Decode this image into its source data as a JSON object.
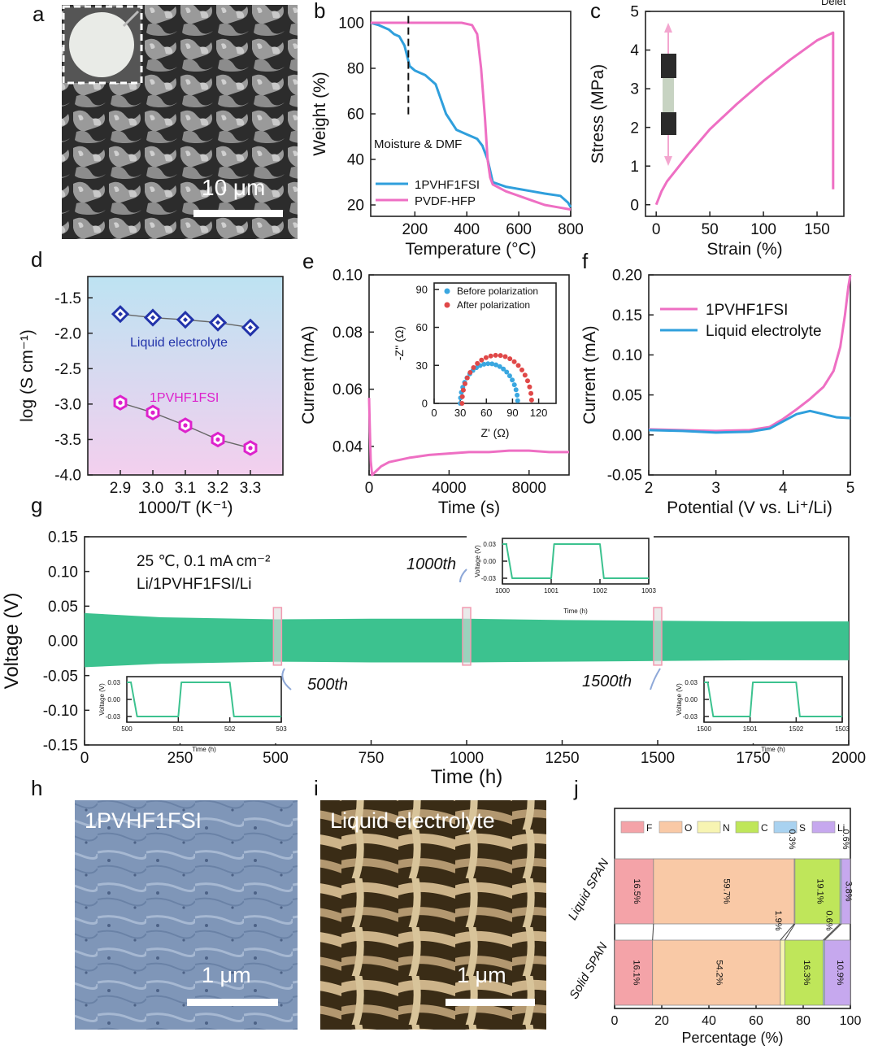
{
  "corner_text": "Delet",
  "panels": {
    "a": {
      "letter": "a",
      "scale_label": "10 μm"
    },
    "b": {
      "letter": "b",
      "annotation": "Moisture & DMF"
    },
    "c": {
      "letter": "c"
    },
    "d": {
      "letter": "d"
    },
    "e": {
      "letter": "e"
    },
    "f": {
      "letter": "f"
    },
    "g": {
      "letter": "g",
      "conditions_line1": "25 ℃, 0.1 mA cm⁻²",
      "conditions_line2": "Li/1PVHF1FSI/Li",
      "callouts": [
        "500th",
        "1000th",
        "1500th"
      ]
    },
    "h": {
      "letter": "h",
      "label": "1PVHF1FSI",
      "scale_label": "1 μm"
    },
    "i": {
      "letter": "i",
      "label": "Liquid electrolyte",
      "scale_label": "1 μm"
    },
    "j": {
      "letter": "j"
    }
  },
  "colors": {
    "pink": "#ee6fc3",
    "blue": "#2f9fdc",
    "green": "#3cc28f",
    "navy": "#2233aa",
    "magenta": "#dd22cc"
  },
  "chart_data": [
    {
      "panel": "b",
      "type": "line",
      "xlabel": "Temperature (°C)",
      "ylabel": "Weight (%)",
      "xlim": [
        30,
        800
      ],
      "ylim": [
        15,
        105
      ],
      "xticks": [
        200,
        400,
        600,
        800
      ],
      "yticks": [
        20,
        40,
        60,
        80,
        100
      ],
      "legend": "bottom-left",
      "series": [
        {
          "name": "1PVHF1FSI",
          "color": "#2f9fdc",
          "x": [
            30,
            60,
            100,
            120,
            140,
            160,
            180,
            200,
            240,
            280,
            320,
            360,
            400,
            440,
            460,
            480,
            500,
            550,
            600,
            650,
            700,
            760,
            790,
            800
          ],
          "y": [
            100,
            99,
            97,
            95,
            94,
            90,
            81,
            79,
            77,
            73,
            60,
            53,
            51,
            49,
            46,
            40,
            30,
            28,
            27,
            26,
            25,
            24,
            21,
            19
          ]
        },
        {
          "name": "PVDF-HFP",
          "color": "#ee6fc3",
          "x": [
            30,
            100,
            200,
            300,
            380,
            420,
            440,
            455,
            470,
            480,
            490,
            500,
            550,
            600,
            650,
            700,
            750,
            800
          ],
          "y": [
            100,
            100,
            100,
            100,
            100,
            99,
            95,
            80,
            58,
            40,
            32,
            29,
            26,
            24,
            22,
            20,
            19,
            18
          ]
        }
      ]
    },
    {
      "panel": "c",
      "type": "line",
      "xlabel": "Strain (%)",
      "ylabel": "Stress (MPa)",
      "xlim": [
        -10,
        175
      ],
      "ylim": [
        -0.3,
        5
      ],
      "xticks": [
        0,
        50,
        100,
        150
      ],
      "yticks": [
        0,
        1,
        2,
        3,
        4,
        5
      ],
      "series": [
        {
          "color": "#ee6fc3",
          "x": [
            0,
            5,
            10,
            20,
            30,
            50,
            75,
            100,
            125,
            150,
            165,
            165,
            165
          ],
          "y": [
            0,
            0.35,
            0.6,
            0.95,
            1.3,
            1.95,
            2.6,
            3.2,
            3.75,
            4.25,
            4.45,
            2.0,
            0.4
          ]
        }
      ]
    },
    {
      "panel": "d",
      "type": "scatter",
      "xlabel": "1000/T (K⁻¹)",
      "ylabel": "log (S cm⁻¹)",
      "xlim": [
        2.8,
        3.4
      ],
      "ylim": [
        -4.0,
        -1.2
      ],
      "xticks": [
        2.9,
        3.0,
        3.1,
        3.2,
        3.3
      ],
      "yticks": [
        -1.5,
        -2.0,
        -2.5,
        -3.0,
        -3.5,
        -4.0
      ],
      "series": [
        {
          "name": "Liquid electrolyte",
          "color": "#2233aa",
          "marker": "diamond",
          "x": [
            2.9,
            3.0,
            3.1,
            3.2,
            3.3
          ],
          "y": [
            -1.73,
            -1.78,
            -1.81,
            -1.85,
            -1.92
          ]
        },
        {
          "name": "1PVHF1FSI",
          "color": "#dd22cc",
          "marker": "hexagon",
          "x": [
            2.9,
            3.0,
            3.1,
            3.2,
            3.3
          ],
          "y": [
            -2.98,
            -3.12,
            -3.3,
            -3.5,
            -3.62
          ]
        }
      ]
    },
    {
      "panel": "e",
      "type": "line",
      "xlabel": "Time (s)",
      "ylabel": "Current (mA)",
      "xlim": [
        0,
        10000
      ],
      "ylim": [
        0.03,
        0.1
      ],
      "xticks": [
        0,
        4000,
        8000
      ],
      "yticks": [
        0.04,
        0.06,
        0.08,
        0.1
      ],
      "series": [
        {
          "color": "#ee6fc3",
          "x": [
            0,
            30,
            80,
            150,
            300,
            600,
            1000,
            2000,
            3000,
            4000,
            5000,
            6000,
            7000,
            8000,
            9000,
            10000
          ],
          "y": [
            0.057,
            0.048,
            0.035,
            0.03,
            0.031,
            0.033,
            0.0345,
            0.036,
            0.037,
            0.0375,
            0.038,
            0.038,
            0.0385,
            0.0385,
            0.038,
            0.038
          ]
        }
      ],
      "inset": {
        "type": "scatter",
        "xlabel": "Z' (Ω)",
        "ylabel": "-Z'' (Ω)",
        "xlim": [
          0,
          140
        ],
        "ylim": [
          0,
          95
        ],
        "xticks": [
          0,
          30,
          60,
          90,
          120
        ],
        "yticks": [
          0,
          30,
          60,
          90
        ],
        "legend": "top",
        "series": [
          {
            "name": "Before polarization",
            "color": "#3aa7e0",
            "center": 63,
            "radius": 33
          },
          {
            "name": "After polarization",
            "color": "#e04848",
            "center": 72,
            "radius": 40
          }
        ]
      }
    },
    {
      "panel": "f",
      "type": "line",
      "xlabel": "Potential (V vs. Li⁺/Li)",
      "ylabel": "Current (mA)",
      "xlim": [
        2,
        5
      ],
      "ylim": [
        -0.05,
        0.2
      ],
      "xticks": [
        2,
        3,
        4,
        5
      ],
      "yticks": [
        -0.05,
        0.0,
        0.05,
        0.1,
        0.15,
        0.2
      ],
      "legend": "top-left",
      "series": [
        {
          "name": "1PVHF1FSI",
          "color": "#ee6fc3",
          "x": [
            2.0,
            2.5,
            3.0,
            3.5,
            3.8,
            4.0,
            4.2,
            4.4,
            4.6,
            4.75,
            4.85,
            4.92,
            4.97,
            5.0
          ],
          "y": [
            0.007,
            0.006,
            0.005,
            0.006,
            0.01,
            0.02,
            0.032,
            0.045,
            0.06,
            0.08,
            0.11,
            0.15,
            0.185,
            0.2
          ]
        },
        {
          "name": "Liquid electrolyte",
          "color": "#2f9fdc",
          "x": [
            2.0,
            2.5,
            3.0,
            3.5,
            3.8,
            4.0,
            4.2,
            4.4,
            4.6,
            4.8,
            5.0
          ],
          "y": [
            0.006,
            0.005,
            0.003,
            0.004,
            0.008,
            0.017,
            0.026,
            0.03,
            0.026,
            0.022,
            0.021
          ]
        }
      ]
    },
    {
      "panel": "g",
      "type": "area",
      "xlabel": "Time (h)",
      "ylabel": "Voltage (V)",
      "xlim": [
        0,
        2000
      ],
      "ylim": [
        -0.15,
        0.15
      ],
      "xticks": [
        0,
        250,
        500,
        750,
        1000,
        1250,
        1500,
        1750,
        2000
      ],
      "yticks": [
        -0.15,
        -0.1,
        -0.05,
        0.0,
        0.05,
        0.1,
        0.15
      ],
      "series": [
        {
          "color": "#3cc28f",
          "x": [
            0,
            200,
            500,
            750,
            1000,
            1250,
            1500,
            1750,
            2000
          ],
          "upper": [
            0.04,
            0.034,
            0.031,
            0.032,
            0.032,
            0.03,
            0.029,
            0.028,
            0.028
          ],
          "lower": [
            -0.038,
            -0.033,
            -0.03,
            -0.031,
            -0.031,
            -0.03,
            -0.029,
            -0.028,
            -0.028
          ]
        }
      ],
      "insets": [
        {
          "cycle": "500th",
          "xlabel": "Time (h)",
          "ylabel": "Voltage (V)",
          "xticks": [
            500,
            501,
            502,
            503
          ],
          "yticks": [
            0.03,
            0.0,
            -0.03
          ]
        },
        {
          "cycle": "1000th",
          "xlabel": "Time (h)",
          "ylabel": "Voltage (V)",
          "xticks": [
            1000,
            1001,
            1002,
            1003
          ],
          "yticks": [
            0.03,
            0.0,
            -0.03
          ]
        },
        {
          "cycle": "1500th",
          "xlabel": "Time (h)",
          "ylabel": "Voltage (V)",
          "xticks": [
            1500,
            1501,
            1502,
            1503
          ],
          "yticks": [
            0.03,
            0.0,
            -0.03
          ]
        }
      ]
    },
    {
      "panel": "j",
      "type": "bar",
      "xlabel": "Percentage (%)",
      "xlim": [
        0,
        100
      ],
      "xticks": [
        0,
        20,
        40,
        60,
        80,
        100
      ],
      "legend": "top",
      "elements": [
        {
          "name": "F",
          "color": "#f4a3a8"
        },
        {
          "name": "O",
          "color": "#f9c9a6"
        },
        {
          "name": "N",
          "color": "#f7f4b2"
        },
        {
          "name": "C",
          "color": "#bfe65a"
        },
        {
          "name": "S",
          "color": "#a9d2f0"
        },
        {
          "name": "Li",
          "color": "#c6a8ee"
        }
      ],
      "categories": [
        "Liquid SPAN",
        "Solid SPAN"
      ],
      "rows": [
        {
          "values": [
            16.5,
            59.7,
            0.3,
            19.1,
            0.6,
            3.8
          ],
          "labels": [
            "16.5%",
            "59.7%",
            "0.3%",
            "19.1%",
            "0.6%",
            "3.8%"
          ]
        },
        {
          "values": [
            16.1,
            54.2,
            1.9,
            16.3,
            0.6,
            10.9
          ],
          "labels": [
            "16.1%",
            "54.2%",
            "1.9%",
            "16.3%",
            "0.6%",
            "10.9%"
          ]
        }
      ]
    }
  ]
}
